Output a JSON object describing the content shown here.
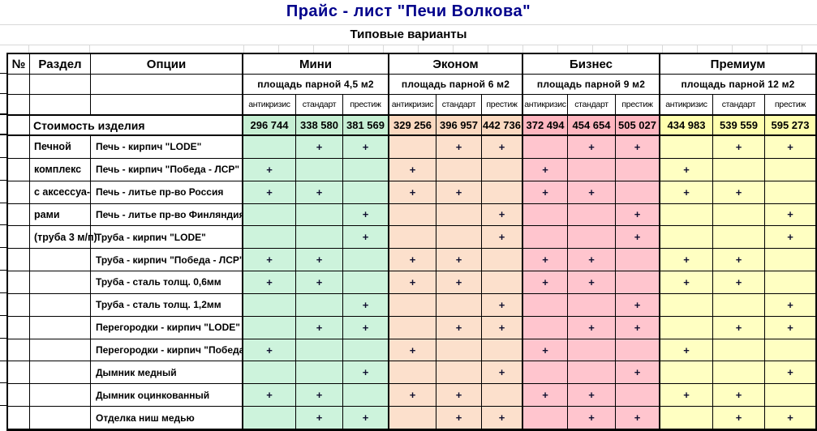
{
  "title": "Прайс - лист   \"Печи  Волкова\"",
  "subtitle": "Типовые  варианты",
  "table": {
    "corner_headers": [
      "№",
      "Раздел",
      "Опции"
    ],
    "price_row_label": "Стоимость  изделия",
    "groups": [
      {
        "name": "Мини",
        "area": "площадь парной  4,5 м2",
        "tiers": [
          "антикризис",
          "стандарт",
          "престиж"
        ],
        "prices": [
          "296 744",
          "338 580",
          "381 569"
        ],
        "color": "#CDF3DC",
        "color_strong": "#C6EFD3"
      },
      {
        "name": "Эконом",
        "area": "площадь парной  6 м2",
        "tiers": [
          "антикризис",
          "стандарт",
          "престиж"
        ],
        "prices": [
          "329 256",
          "396 957",
          "442 736"
        ],
        "color": "#FCE0CC",
        "color_strong": "#FBD9C0"
      },
      {
        "name": "Бизнес",
        "area": "площадь  парной  9 м2",
        "tiers": [
          "антикризис",
          "стандарт",
          "престиж"
        ],
        "prices": [
          "372 494",
          "454 654",
          "505 027"
        ],
        "color": "#FFC5CE",
        "color_strong": "#FFB6C0"
      },
      {
        "name": "Премиум",
        "area": "площадь  парной  12 м2",
        "tiers": [
          "антикризис",
          "стандарт",
          "престиж"
        ],
        "prices": [
          "434 983",
          "539 559",
          "595 273"
        ],
        "color": "#FFFFC2",
        "color_strong": "#FFFFAE"
      }
    ],
    "section_lines": [
      "Печной",
      "комплекс",
      "с аксессуа-",
      "рами",
      "(труба 3 м/п)",
      "",
      "",
      "",
      "",
      "",
      "",
      "",
      ""
    ],
    "rows": [
      {
        "option": "Печь - кирпич \"LODE\"",
        "marks": [
          "",
          "+",
          "+",
          "",
          "+",
          "+",
          "",
          "+",
          "+",
          "",
          "+",
          "+"
        ]
      },
      {
        "option": "Печь - кирпич \"Победа - ЛСР\"",
        "marks": [
          "+",
          "",
          "",
          "+",
          "",
          "",
          "+",
          "",
          "",
          "+",
          "",
          ""
        ]
      },
      {
        "option": "Печь - литье пр-во Россия",
        "marks": [
          "+",
          "+",
          "",
          "+",
          "+",
          "",
          "+",
          "+",
          "",
          "+",
          "+",
          ""
        ]
      },
      {
        "option": "Печь - литье пр-во Финляндия",
        "marks": [
          "",
          "",
          "+",
          "",
          "",
          "+",
          "",
          "",
          "+",
          "",
          "",
          "+"
        ]
      },
      {
        "option": "Труба - кирпич \"LODE\"",
        "marks": [
          "",
          "",
          "+",
          "",
          "",
          "+",
          "",
          "",
          "+",
          "",
          "",
          "+"
        ]
      },
      {
        "option": "Труба - кирпич \"Победа - ЛСР\"",
        "marks": [
          "+",
          "+",
          "",
          "+",
          "+",
          "",
          "+",
          "+",
          "",
          "+",
          "+",
          ""
        ]
      },
      {
        "option": "Труба - сталь толщ. 0,6мм",
        "marks": [
          "+",
          "+",
          "",
          "+",
          "+",
          "",
          "+",
          "+",
          "",
          "+",
          "+",
          ""
        ]
      },
      {
        "option": "Труба - сталь толщ. 1,2мм",
        "marks": [
          "",
          "",
          "+",
          "",
          "",
          "+",
          "",
          "",
          "+",
          "",
          "",
          "+"
        ]
      },
      {
        "option": "Перегородки - кирпич \"LODE\"",
        "marks": [
          "",
          "+",
          "+",
          "",
          "+",
          "+",
          "",
          "+",
          "+",
          "",
          "+",
          "+"
        ]
      },
      {
        "option": "Перегородки - кирпич \"Победа - ЛСР\"",
        "marks": [
          "+",
          "",
          "",
          "+",
          "",
          "",
          "+",
          "",
          "",
          "+",
          "",
          ""
        ]
      },
      {
        "option": "Дымник медный",
        "marks": [
          "",
          "",
          "+",
          "",
          "",
          "+",
          "",
          "",
          "+",
          "",
          "",
          "+"
        ]
      },
      {
        "option": "Дымник оцинкованный",
        "marks": [
          "+",
          "+",
          "",
          "+",
          "+",
          "",
          "+",
          "+",
          "",
          "+",
          "+",
          ""
        ]
      },
      {
        "option": "Отделка  ниш  медью",
        "marks": [
          "",
          "+",
          "+",
          "",
          "+",
          "+",
          "",
          "+",
          "+",
          "",
          "+",
          "+"
        ]
      }
    ]
  }
}
